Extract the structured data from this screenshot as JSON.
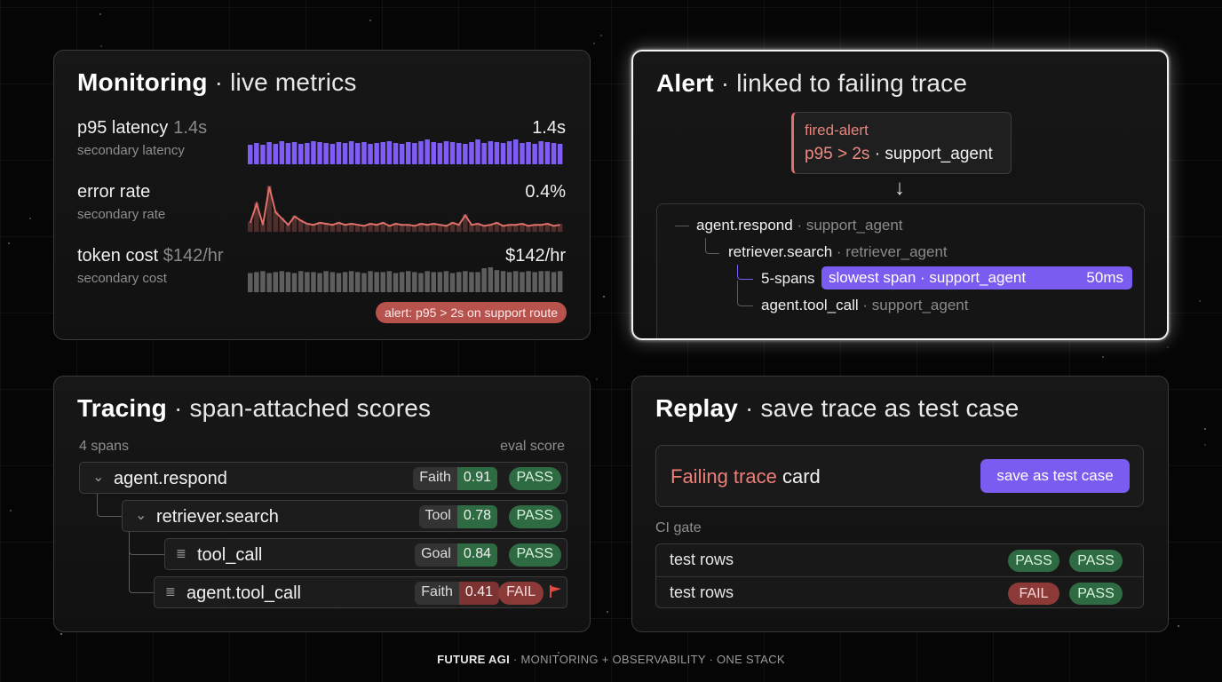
{
  "monitoring": {
    "title_bold": "Monitoring",
    "title_rest": "live metrics",
    "metrics": [
      {
        "name": "p95 latency",
        "inline_value": "1.4s",
        "sub": "secondary latency",
        "value": "1.4s",
        "color": "#7f5cf5"
      },
      {
        "name": "error rate",
        "inline_value": "",
        "sub": "secondary rate",
        "value": "0.4%",
        "color": "#e0706a"
      },
      {
        "name": "token cost",
        "inline_value": "$142/hr",
        "sub": "secondary cost",
        "value": "$142/hr",
        "color": "#5e5e5e"
      }
    ],
    "alert_pill": "alert: p95 > 2s on support route",
    "series": {
      "latency": [
        22,
        24,
        22,
        25,
        23,
        26,
        24,
        25,
        23,
        24,
        26,
        25,
        24,
        23,
        25,
        24,
        26,
        24,
        25,
        23,
        24,
        25,
        26,
        24,
        23,
        25,
        24,
        26,
        28,
        25,
        24,
        26,
        25,
        24,
        23,
        25,
        28,
        24,
        26,
        25,
        24,
        26,
        28,
        24,
        25,
        23,
        26,
        25,
        24,
        23
      ],
      "error": [
        6,
        24,
        4,
        40,
        16,
        10,
        4,
        12,
        8,
        5,
        4,
        6,
        5,
        4,
        6,
        4,
        5,
        4,
        3,
        5,
        4,
        6,
        3,
        5,
        4,
        4,
        3,
        5,
        4,
        5,
        4,
        3,
        6,
        4,
        13,
        4,
        5,
        3,
        4,
        6,
        3,
        4,
        4,
        5,
        3,
        4,
        4,
        5,
        3,
        4
      ],
      "cost": [
        20,
        21,
        22,
        20,
        21,
        22,
        21,
        20,
        22,
        21,
        21,
        20,
        22,
        21,
        20,
        21,
        22,
        21,
        20,
        22,
        21,
        21,
        22,
        20,
        21,
        22,
        21,
        20,
        22,
        21,
        21,
        22,
        20,
        21,
        22,
        21,
        21,
        25,
        26,
        23,
        22,
        21,
        22,
        21,
        22,
        21,
        22,
        22,
        21,
        22
      ]
    }
  },
  "alert": {
    "title_bold": "Alert",
    "title_rest": "linked to failing trace",
    "fired_name": "fired-alert",
    "fired_cond": "p95 > 2s",
    "fired_target": "support_agent",
    "arrow": "↓",
    "tree": [
      {
        "name": "agent.respond",
        "service": "support_agent"
      },
      {
        "name": "retriever.search",
        "service": "retriever_agent"
      },
      {
        "name": "5-spans",
        "service": ""
      },
      {
        "name": "agent.tool_call",
        "service": "support_agent"
      }
    ],
    "slowest_label": "slowest span · support_agent",
    "slowest_value": "50ms"
  },
  "tracing": {
    "title_bold": "Tracing",
    "title_rest": "span-attached scores",
    "header_left": "4 spans",
    "header_right": "eval score",
    "spans": [
      {
        "name": "agent.respond",
        "metric": "Faith",
        "score": "0.91",
        "status": "PASS"
      },
      {
        "name": "retriever.search",
        "metric": "Tool",
        "score": "0.78",
        "status": "PASS"
      },
      {
        "name": "tool_call",
        "metric": "Goal",
        "score": "0.84",
        "status": "PASS"
      },
      {
        "name": "agent.tool_call",
        "metric": "Faith",
        "score": "0.41",
        "status": "FAIL"
      }
    ]
  },
  "replay": {
    "title_bold": "Replay",
    "title_rest": "save trace as test case",
    "card_red": "Failing trace",
    "card_rest": "card",
    "save_button": "save as test case",
    "ci_label": "CI gate",
    "rows": [
      {
        "label": "test rows",
        "s1": "PASS",
        "s2": "PASS"
      },
      {
        "label": "test rows",
        "s1": "FAIL",
        "s2": "PASS"
      }
    ]
  },
  "footer": {
    "brand": "FUTURE AGI",
    "tagline": "· MONITORING + OBSERVABILITY · ONE STACK"
  },
  "colors": {
    "accent": "#7a5cf0",
    "error": "#e0706a",
    "pass": "#2f6b42",
    "fail": "#8c3a38"
  }
}
